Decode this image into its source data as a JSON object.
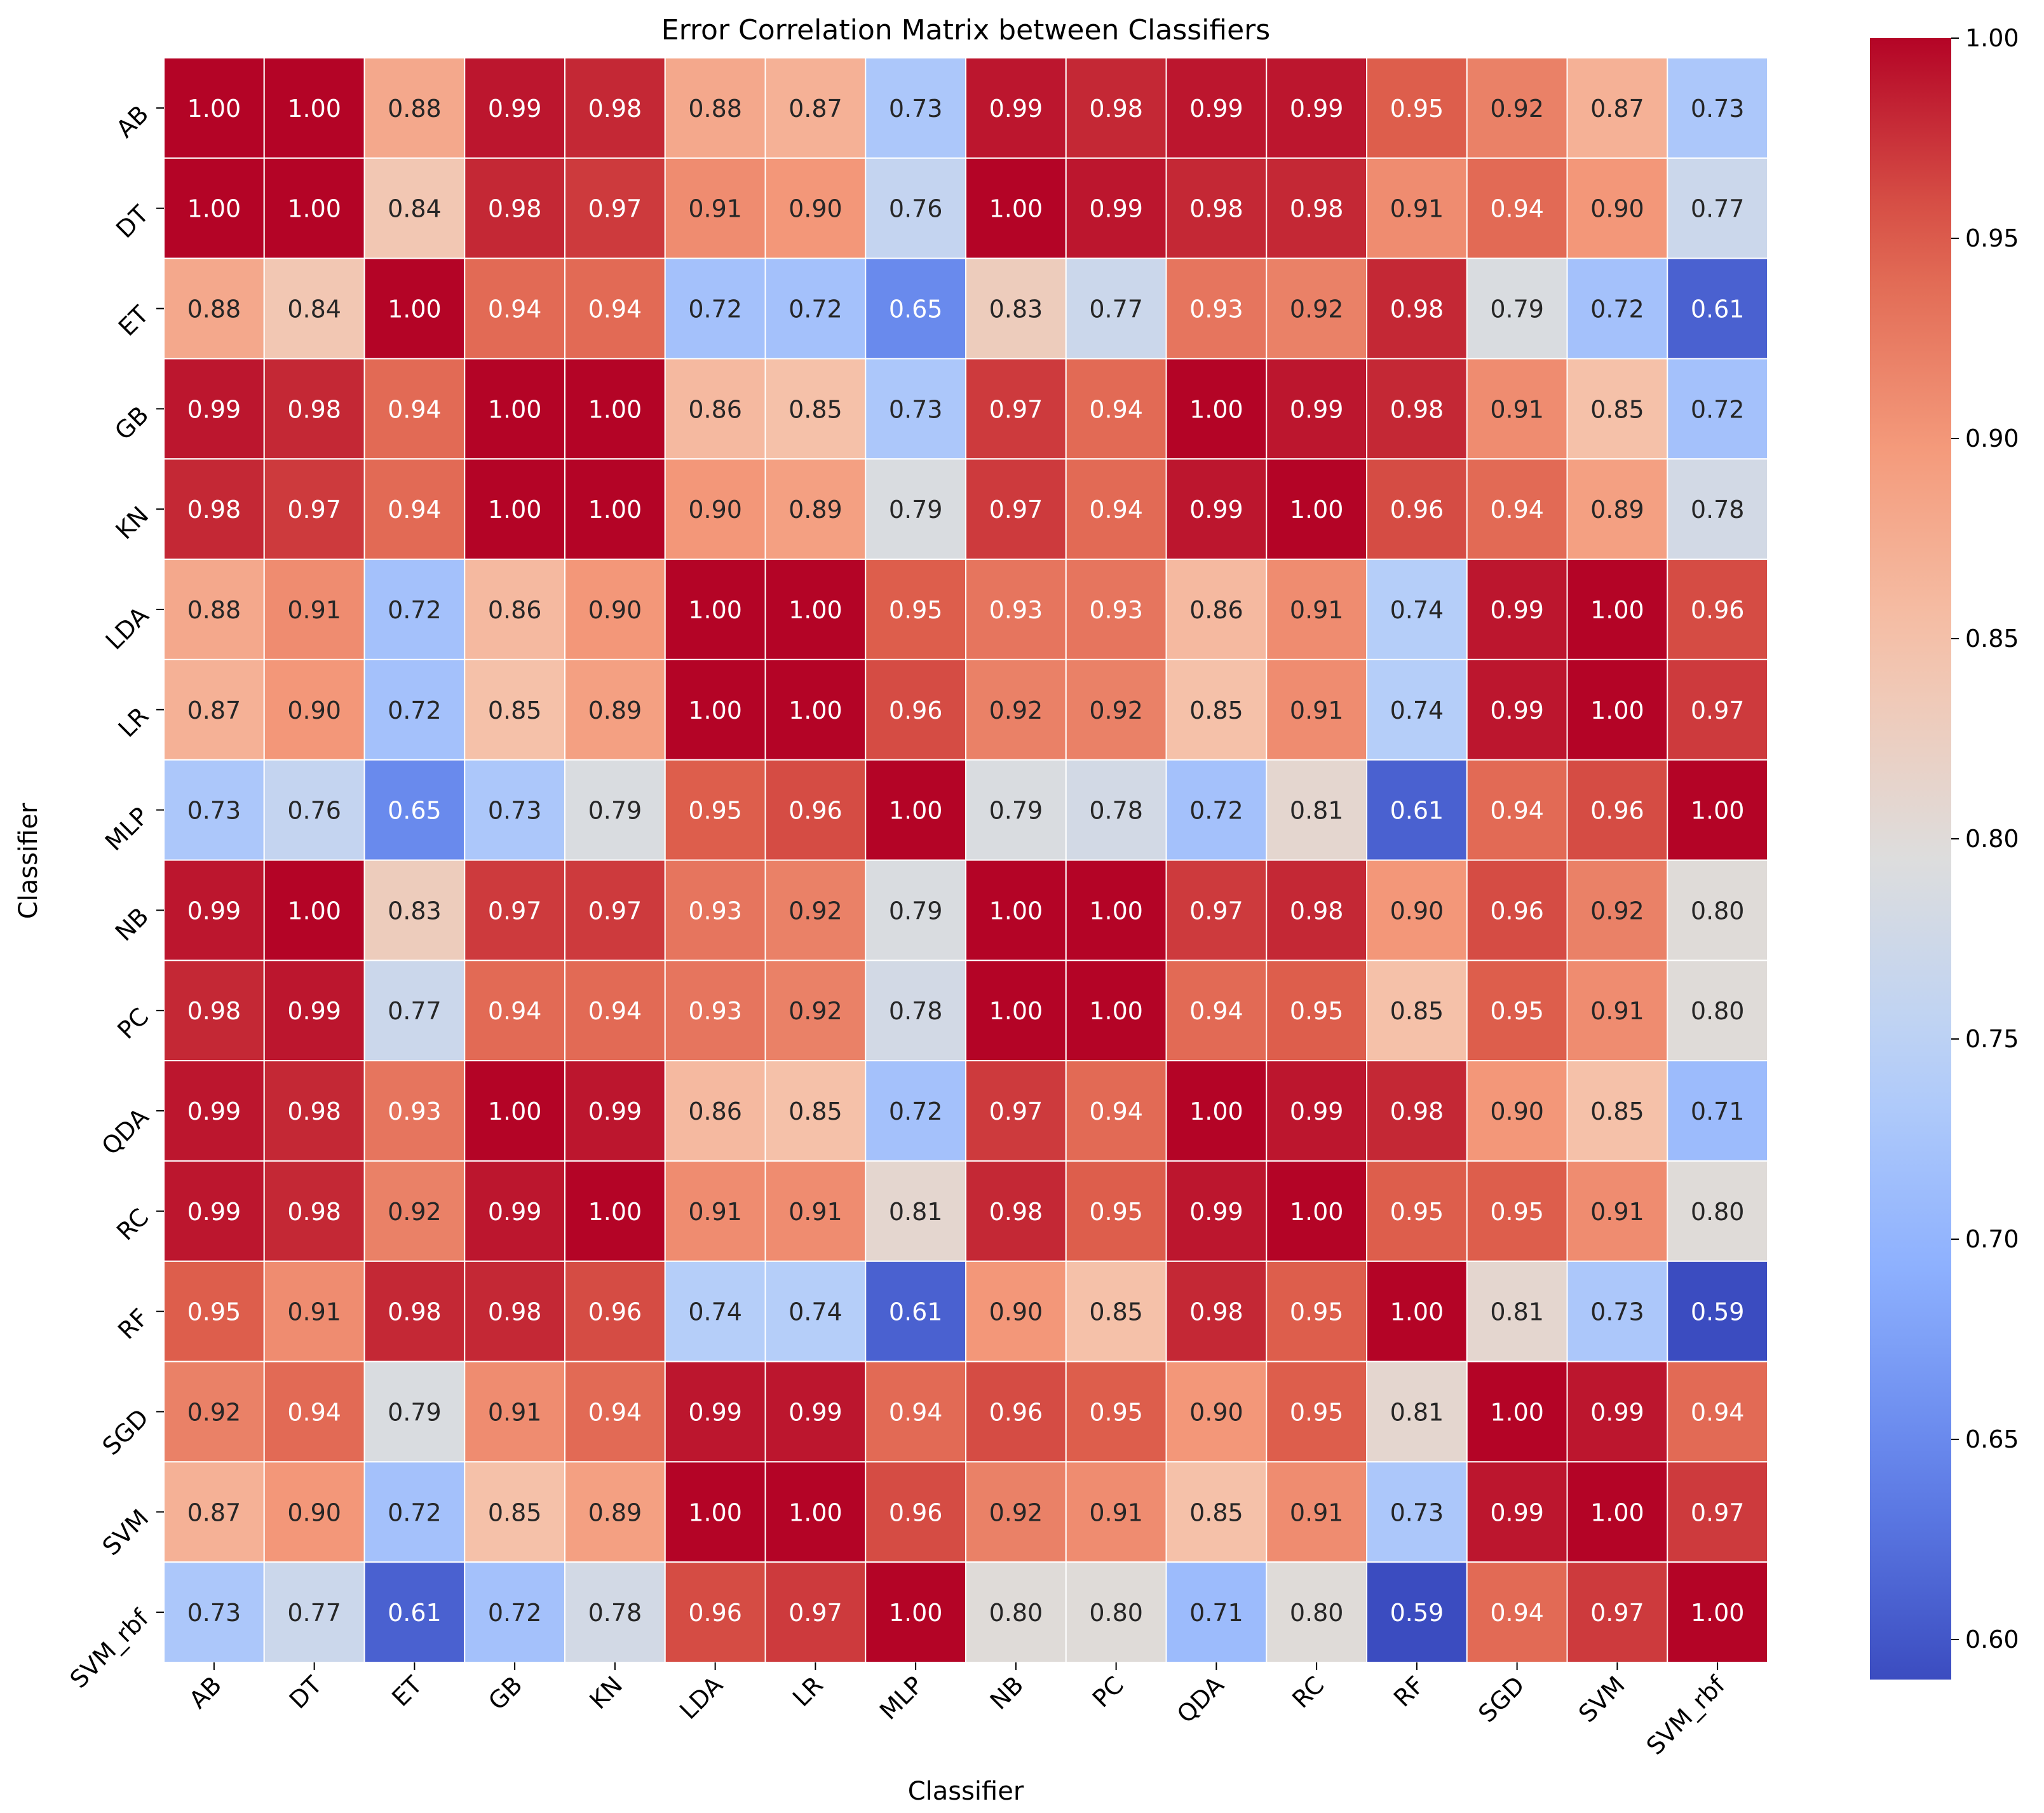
{
  "chart_data": {
    "type": "heatmap",
    "title": "Error Correlation Matrix between Classifiers",
    "xlabel": "Classifier",
    "ylabel": "Classifier",
    "categories": [
      "AB",
      "DT",
      "ET",
      "GB",
      "KN",
      "LDA",
      "LR",
      "MLP",
      "NB",
      "PC",
      "QDA",
      "RC",
      "RF",
      "SGD",
      "SVM",
      "SVM_rbf"
    ],
    "values": [
      [
        1.0,
        1.0,
        0.88,
        0.99,
        0.98,
        0.88,
        0.87,
        0.73,
        0.99,
        0.98,
        0.99,
        0.99,
        0.95,
        0.92,
        0.87,
        0.73
      ],
      [
        1.0,
        1.0,
        0.84,
        0.98,
        0.97,
        0.91,
        0.9,
        0.76,
        1.0,
        0.99,
        0.98,
        0.98,
        0.91,
        0.94,
        0.9,
        0.77
      ],
      [
        0.88,
        0.84,
        1.0,
        0.94,
        0.94,
        0.72,
        0.72,
        0.65,
        0.83,
        0.77,
        0.93,
        0.92,
        0.98,
        0.79,
        0.72,
        0.61
      ],
      [
        0.99,
        0.98,
        0.94,
        1.0,
        1.0,
        0.86,
        0.85,
        0.73,
        0.97,
        0.94,
        1.0,
        0.99,
        0.98,
        0.91,
        0.85,
        0.72
      ],
      [
        0.98,
        0.97,
        0.94,
        1.0,
        1.0,
        0.9,
        0.89,
        0.79,
        0.97,
        0.94,
        0.99,
        1.0,
        0.96,
        0.94,
        0.89,
        0.78
      ],
      [
        0.88,
        0.91,
        0.72,
        0.86,
        0.9,
        1.0,
        1.0,
        0.95,
        0.93,
        0.93,
        0.86,
        0.91,
        0.74,
        0.99,
        1.0,
        0.96
      ],
      [
        0.87,
        0.9,
        0.72,
        0.85,
        0.89,
        1.0,
        1.0,
        0.96,
        0.92,
        0.92,
        0.85,
        0.91,
        0.74,
        0.99,
        1.0,
        0.97
      ],
      [
        0.73,
        0.76,
        0.65,
        0.73,
        0.79,
        0.95,
        0.96,
        1.0,
        0.79,
        0.78,
        0.72,
        0.81,
        0.61,
        0.94,
        0.96,
        1.0
      ],
      [
        0.99,
        1.0,
        0.83,
        0.97,
        0.97,
        0.93,
        0.92,
        0.79,
        1.0,
        1.0,
        0.97,
        0.98,
        0.9,
        0.96,
        0.92,
        0.8
      ],
      [
        0.98,
        0.99,
        0.77,
        0.94,
        0.94,
        0.93,
        0.92,
        0.78,
        1.0,
        1.0,
        0.94,
        0.95,
        0.85,
        0.95,
        0.91,
        0.8
      ],
      [
        0.99,
        0.98,
        0.93,
        1.0,
        0.99,
        0.86,
        0.85,
        0.72,
        0.97,
        0.94,
        1.0,
        0.99,
        0.98,
        0.9,
        0.85,
        0.71
      ],
      [
        0.99,
        0.98,
        0.92,
        0.99,
        1.0,
        0.91,
        0.91,
        0.81,
        0.98,
        0.95,
        0.99,
        1.0,
        0.95,
        0.95,
        0.91,
        0.8
      ],
      [
        0.95,
        0.91,
        0.98,
        0.98,
        0.96,
        0.74,
        0.74,
        0.61,
        0.9,
        0.85,
        0.98,
        0.95,
        1.0,
        0.81,
        0.73,
        0.59
      ],
      [
        0.92,
        0.94,
        0.79,
        0.91,
        0.94,
        0.99,
        0.99,
        0.94,
        0.96,
        0.95,
        0.9,
        0.95,
        0.81,
        1.0,
        0.99,
        0.94
      ],
      [
        0.87,
        0.9,
        0.72,
        0.85,
        0.89,
        1.0,
        1.0,
        0.96,
        0.92,
        0.91,
        0.85,
        0.91,
        0.73,
        0.99,
        1.0,
        0.97
      ],
      [
        0.73,
        0.77,
        0.61,
        0.72,
        0.78,
        0.96,
        0.97,
        1.0,
        0.8,
        0.8,
        0.71,
        0.8,
        0.59,
        0.94,
        0.97,
        1.0
      ]
    ],
    "value_format": "0.00",
    "colormap": "coolwarm",
    "colorbar": {
      "range": [
        0.59,
        1.0
      ],
      "ticks": [
        0.6,
        0.65,
        0.7,
        0.75,
        0.8,
        0.85,
        0.9,
        0.95,
        1.0
      ],
      "tick_labels": [
        "0.60",
        "0.65",
        "0.70",
        "0.75",
        "0.80",
        "0.85",
        "0.90",
        "0.95",
        "1.00"
      ],
      "placement": "right"
    },
    "grid": false
  }
}
